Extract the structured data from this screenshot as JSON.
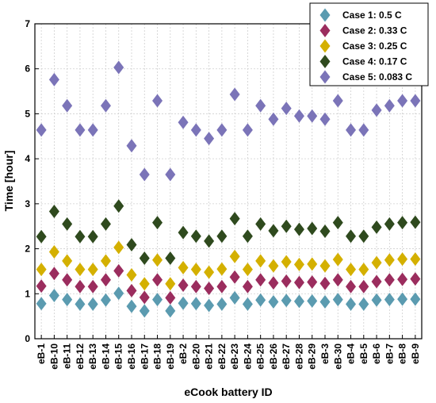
{
  "chart_data": {
    "type": "scatter",
    "xlabel": "eCook battery ID",
    "ylabel": "Time [hour]",
    "ylim": [
      0,
      7
    ],
    "yticks": [
      0,
      1,
      2,
      3,
      4,
      5,
      6,
      7
    ],
    "grid": true,
    "legend_position": "top-right",
    "categories": [
      "eB-1",
      "eB-10",
      "eB-11",
      "eB-12",
      "eB-13",
      "eB-14",
      "eB-15",
      "eB-16",
      "eB-17",
      "eB-18",
      "eB-19",
      "eB-2",
      "eB-20",
      "eB-21",
      "eB-22",
      "eB-23",
      "eB-24",
      "eB-25",
      "eB-26",
      "eB-27",
      "eB-28",
      "eB-29",
      "eB-3",
      "eB-30",
      "eB-4",
      "eB-5",
      "eB-6",
      "eB-7",
      "eB-8",
      "eB-9"
    ],
    "series": [
      {
        "name": "Case 1: 0.5 C",
        "color": "#5b9bb0",
        "values": [
          0.78,
          0.96,
          0.87,
          0.77,
          0.77,
          0.86,
          1.01,
          0.72,
          0.62,
          0.87,
          0.62,
          0.79,
          0.78,
          0.74,
          0.77,
          0.91,
          0.77,
          0.86,
          0.82,
          0.85,
          0.83,
          0.84,
          0.82,
          0.87,
          0.77,
          0.77,
          0.86,
          0.87,
          0.88,
          0.88
        ]
      },
      {
        "name": "Case 2: 0.33 C",
        "color": "#9b2d5e",
        "values": [
          1.17,
          1.45,
          1.31,
          1.16,
          1.16,
          1.31,
          1.51,
          1.07,
          0.92,
          1.31,
          0.91,
          1.19,
          1.16,
          1.12,
          1.16,
          1.37,
          1.16,
          1.31,
          1.24,
          1.28,
          1.25,
          1.26,
          1.23,
          1.31,
          1.16,
          1.16,
          1.27,
          1.31,
          1.32,
          1.33
        ]
      },
      {
        "name": "Case 3: 0.25 C",
        "color": "#d4b000",
        "values": [
          1.54,
          1.93,
          1.73,
          1.54,
          1.54,
          1.73,
          2.03,
          1.42,
          1.22,
          1.75,
          1.22,
          1.58,
          1.54,
          1.48,
          1.55,
          1.83,
          1.54,
          1.73,
          1.62,
          1.71,
          1.65,
          1.66,
          1.62,
          1.76,
          1.54,
          1.54,
          1.69,
          1.75,
          1.77,
          1.77
        ]
      },
      {
        "name": "Case 4: 0.17 C",
        "color": "#2f4a1e",
        "values": [
          2.27,
          2.83,
          2.55,
          2.27,
          2.27,
          2.55,
          2.95,
          2.09,
          1.79,
          2.58,
          1.79,
          2.36,
          2.28,
          2.17,
          2.28,
          2.67,
          2.28,
          2.55,
          2.4,
          2.5,
          2.43,
          2.45,
          2.39,
          2.58,
          2.28,
          2.28,
          2.48,
          2.55,
          2.58,
          2.59
        ]
      },
      {
        "name": "Case 5: 0.083 C",
        "color": "#7b74b8",
        "values": [
          4.64,
          5.76,
          5.18,
          4.64,
          4.64,
          5.18,
          6.03,
          4.29,
          3.65,
          5.29,
          3.65,
          4.81,
          4.64,
          4.45,
          4.64,
          5.43,
          4.64,
          5.18,
          4.88,
          5.12,
          4.95,
          4.95,
          4.88,
          5.29,
          4.64,
          4.64,
          5.08,
          5.18,
          5.29,
          5.29
        ]
      }
    ]
  }
}
